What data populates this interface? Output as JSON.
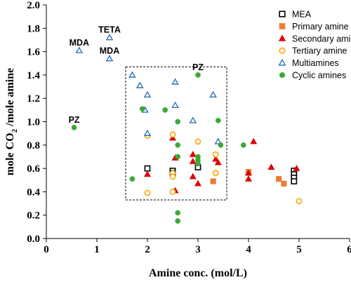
{
  "chart_data": {
    "type": "scatter",
    "xlabel": "Amine conc. (mol/L)",
    "ylabel_parts": [
      "mole CO",
      "2",
      " /mole amine"
    ],
    "xlim": [
      0,
      6
    ],
    "ylim": [
      0,
      2
    ],
    "xticks": [
      "0",
      "1",
      "2",
      "3",
      "4",
      "5",
      "6"
    ],
    "yticks": [
      "0.0",
      "0.2",
      "0.4",
      "0.6",
      "0.8",
      "1.0",
      "1.2",
      "1.4",
      "1.6",
      "1.8",
      "2.0"
    ],
    "grid": false,
    "legend_position": "top-right",
    "series": [
      {
        "name": "MEA",
        "marker": "open-square",
        "color": "#000000",
        "points": [
          [
            2.0,
            0.6
          ],
          [
            2.5,
            0.58
          ],
          [
            2.5,
            0.56
          ],
          [
            3.0,
            0.61
          ],
          [
            4.9,
            0.58
          ],
          [
            4.9,
            0.55
          ],
          [
            4.9,
            0.52
          ],
          [
            4.9,
            0.49
          ]
        ]
      },
      {
        "name": "Primary amine",
        "marker": "filled-square",
        "color": "#ED7D31",
        "points": [
          [
            3.3,
            0.49
          ],
          [
            4.0,
            0.57
          ],
          [
            4.6,
            0.51
          ],
          [
            4.7,
            0.47
          ]
        ]
      },
      {
        "name": "Secondary amine",
        "marker": "filled-triangle",
        "color": "#E00000",
        "points": [
          [
            2.0,
            0.55
          ],
          [
            2.5,
            0.86
          ],
          [
            2.55,
            0.69
          ],
          [
            2.55,
            0.41
          ],
          [
            2.9,
            0.72
          ],
          [
            2.9,
            0.66
          ],
          [
            2.9,
            0.53
          ],
          [
            3.0,
            0.47
          ],
          [
            3.35,
            0.68
          ],
          [
            3.4,
            0.65
          ],
          [
            4.0,
            0.56
          ],
          [
            4.0,
            0.51
          ],
          [
            4.1,
            0.83
          ],
          [
            4.45,
            0.61
          ],
          [
            4.95,
            0.6
          ]
        ]
      },
      {
        "name": "Tertiary amine",
        "marker": "open-circle",
        "color": "#F5A800",
        "points": [
          [
            2.0,
            0.88
          ],
          [
            2.0,
            0.39
          ],
          [
            2.5,
            0.89
          ],
          [
            2.5,
            0.56
          ],
          [
            2.5,
            0.53
          ],
          [
            2.5,
            0.4
          ],
          [
            3.0,
            0.83
          ],
          [
            3.35,
            0.72
          ],
          [
            3.35,
            0.56
          ],
          [
            5.0,
            0.32
          ]
        ]
      },
      {
        "name": "Multiamines",
        "marker": "open-triangle",
        "color": "#2E75B6",
        "points": [
          [
            0.65,
            1.61
          ],
          [
            1.25,
            1.72
          ],
          [
            1.25,
            1.54
          ],
          [
            1.7,
            1.4
          ],
          [
            1.85,
            1.31
          ],
          [
            1.95,
            1.1
          ],
          [
            2.0,
            1.23
          ],
          [
            2.0,
            0.9
          ],
          [
            2.55,
            1.34
          ],
          [
            2.55,
            1.14
          ],
          [
            2.9,
            1.01
          ],
          [
            3.3,
            1.23
          ],
          [
            3.4,
            0.83
          ]
        ]
      },
      {
        "name": "Cyclic amines",
        "marker": "filled-circle",
        "color": "#3AAA35",
        "points": [
          [
            0.55,
            0.95
          ],
          [
            1.7,
            0.51
          ],
          [
            1.9,
            1.11
          ],
          [
            2.35,
            1.1
          ],
          [
            2.6,
            1.0
          ],
          [
            2.6,
            0.8
          ],
          [
            2.6,
            0.7
          ],
          [
            2.6,
            0.22
          ],
          [
            2.6,
            0.15
          ],
          [
            3.0,
            1.4
          ],
          [
            3.0,
            0.7
          ],
          [
            3.0,
            0.67
          ],
          [
            3.0,
            0.64
          ],
          [
            3.4,
            1.01
          ],
          [
            3.45,
            0.8
          ],
          [
            3.9,
            0.8
          ]
        ]
      }
    ],
    "annotations": [
      {
        "text": "MDA",
        "x": 0.65,
        "y": 1.61
      },
      {
        "text": "TETA",
        "x": 1.25,
        "y": 1.72
      },
      {
        "text": "MDA",
        "x": 1.25,
        "y": 1.54
      },
      {
        "text": "PZ",
        "x": 0.55,
        "y": 0.95
      },
      {
        "text": "PZ",
        "x": 3.0,
        "y": 1.4
      }
    ],
    "region_box": {
      "x0": 1.57,
      "x1": 3.57,
      "y0": 0.33,
      "y1": 1.47
    }
  }
}
